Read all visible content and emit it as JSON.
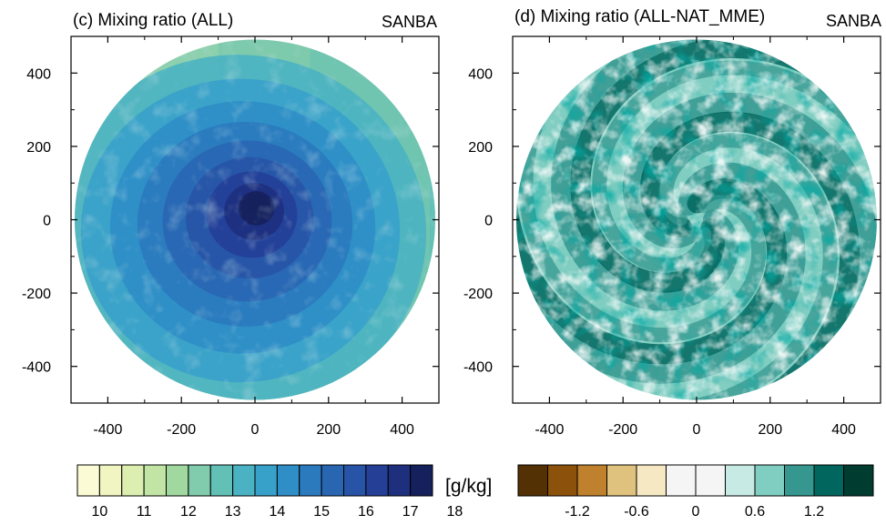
{
  "chart_data": [
    {
      "type": "heatmap",
      "title": "(c) Mixing ratio (ALL)",
      "label_right": "SANBA",
      "xlabel": "",
      "ylabel": "",
      "xlim": [
        -500,
        500
      ],
      "ylim": [
        -500,
        500
      ],
      "x_ticks": [
        -400,
        -200,
        0,
        200,
        400
      ],
      "y_ticks": [
        400,
        200,
        0,
        -200,
        -400
      ],
      "x_tick_labels": [
        "-400",
        "-200",
        "0",
        "200",
        "400"
      ],
      "y_tick_labels": [
        "400",
        "200",
        "0",
        "-200",
        "-400"
      ],
      "domain_radius": 490,
      "center_value": 18,
      "center_position": [
        10,
        40
      ],
      "west_edge_value": 10.5,
      "east_edge_value": 13,
      "colorbar": {
        "levels": [
          10,
          11,
          12,
          13,
          14,
          15,
          16,
          17,
          18
        ],
        "tick_labels": [
          "10",
          "11",
          "12",
          "13",
          "14",
          "15",
          "16",
          "17",
          "18"
        ],
        "colors": [
          "#fbfbd5",
          "#f0f5c2",
          "#dcefb0",
          "#c2e5a5",
          "#a0d8a0",
          "#80ccac",
          "#62c0b6",
          "#4ab2c2",
          "#38a1ca",
          "#2f8ec6",
          "#2b7abe",
          "#2966b2",
          "#2754a6",
          "#253f97",
          "#1e2f7e",
          "#15215c"
        ],
        "unit": "[g/kg]"
      }
    },
    {
      "type": "heatmap",
      "title": "(d) Mixing ratio (ALL-NAT_MME)",
      "label_right": "SANBA",
      "xlabel": "",
      "ylabel": "",
      "xlim": [
        -500,
        500
      ],
      "ylim": [
        -500,
        500
      ],
      "x_ticks": [
        -400,
        -200,
        0,
        200,
        400
      ],
      "y_ticks": [
        400,
        200,
        0,
        -200,
        -400
      ],
      "x_tick_labels": [
        "-400",
        "-200",
        "0",
        "200",
        "400"
      ],
      "y_tick_labels": [
        "400",
        "200",
        "0",
        "-200",
        "-400"
      ],
      "domain_radius": 490,
      "spiral_arms": 3,
      "colorbar": {
        "levels": [
          -1.2,
          -0.6,
          0,
          0.6,
          1.2
        ],
        "tick_labels": [
          "-1.2",
          "-0.6",
          "0",
          "0.6",
          "1.2"
        ],
        "colors": [
          "#543005",
          "#8c510a",
          "#bf812d",
          "#dfc27d",
          "#f6e8c3",
          "#f5f5f5",
          "#f5f5f5",
          "#c7eae5",
          "#80cdc1",
          "#35978f",
          "#01665e",
          "#003c30"
        ]
      }
    }
  ]
}
